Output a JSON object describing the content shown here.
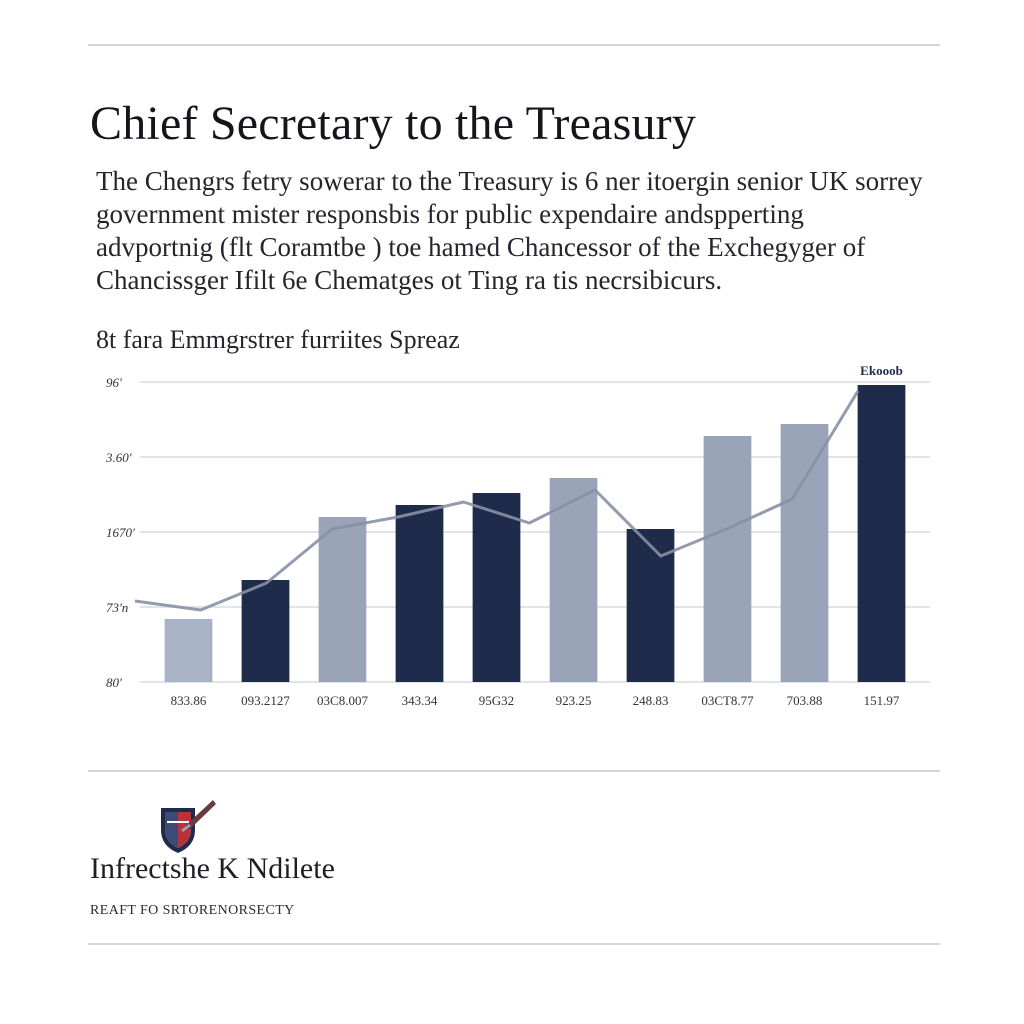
{
  "page": {
    "title": "Chief Secretary to the Treasury",
    "intro_lines": [
      "The Chengrs fetry sowerar to the Treasury is 6 ner itoergin senior UK sorrey",
      "government mister responsbis for public expendaire andspperting",
      "advportnig (flt Coramtbe ) toe hamed Chancessor of the Exchegyger of",
      "Chancissger Ifilt 6e Chematges ot Ting ra tis necrsibicurs."
    ]
  },
  "chart_data": {
    "type": "bar",
    "title": "8t fara Emmgrstrer furriites Spreaz",
    "categories": [
      "833.86",
      "093.2127",
      "03C8.007",
      "343.34",
      "95G32",
      "923.25",
      "248.83",
      "03CT8.77",
      "703.88",
      "151.97"
    ],
    "y_tick_labels": [
      "80'",
      "73'n",
      "1670'",
      "3.60'",
      "96'"
    ],
    "ylim": [
      0,
      100
    ],
    "series": [
      {
        "values": [
          21,
          34,
          55,
          59,
          63,
          68,
          51,
          82,
          86,
          99
        ],
        "colors": [
          "#a9b3c8",
          "#1e2b4a",
          "#9aa4b9",
          "#1e2b4a",
          "#1e2b4a",
          "#9aa4b9",
          "#1e2b4a",
          "#9aa4b9",
          "#9aa4b9",
          "#1e2b4a"
        ]
      }
    ],
    "trend_line": [
      27,
      24,
      33,
      51,
      55,
      60,
      53,
      64,
      42,
      51,
      61,
      97
    ],
    "annotation": "Ekooob",
    "legend": "none",
    "grid": true
  },
  "footer": {
    "org": "Infrectshe K Ndilete",
    "tagline": "REAFT FO SRTORENORSECTY",
    "crest_icon": "shield-crest-icon"
  }
}
